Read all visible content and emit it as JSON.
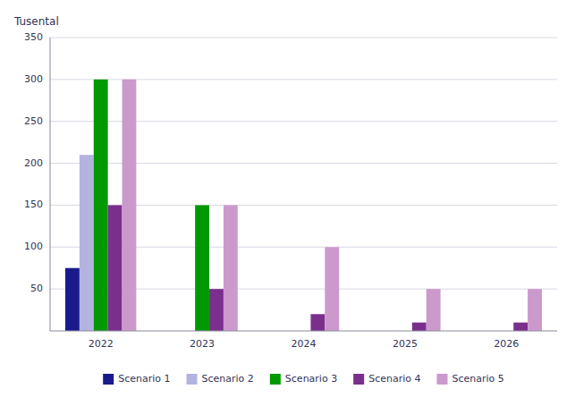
{
  "chart_data": {
    "type": "bar",
    "y_label": "Tusental",
    "categories": [
      "2022",
      "2023",
      "2024",
      "2025",
      "2026"
    ],
    "series": [
      {
        "name": "Scenario 1",
        "color": "#1a1a8c",
        "values": [
          75,
          0,
          0,
          0,
          0
        ]
      },
      {
        "name": "Scenario 2",
        "color": "#b3b3e0",
        "values": [
          210,
          0,
          0,
          0,
          0
        ]
      },
      {
        "name": "Scenario 3",
        "color": "#009900",
        "values": [
          300,
          150,
          0,
          0,
          0
        ]
      },
      {
        "name": "Scenario 4",
        "color": "#7b2f8c",
        "values": [
          150,
          50,
          20,
          10,
          10
        ]
      },
      {
        "name": "Scenario 5",
        "color": "#cc99cc",
        "values": [
          300,
          150,
          100,
          50,
          50
        ]
      }
    ],
    "ylim": [
      0,
      350
    ],
    "yticks": [
      50,
      100,
      150,
      200,
      250,
      300,
      350
    ],
    "grid": true,
    "legend": "bottom"
  }
}
